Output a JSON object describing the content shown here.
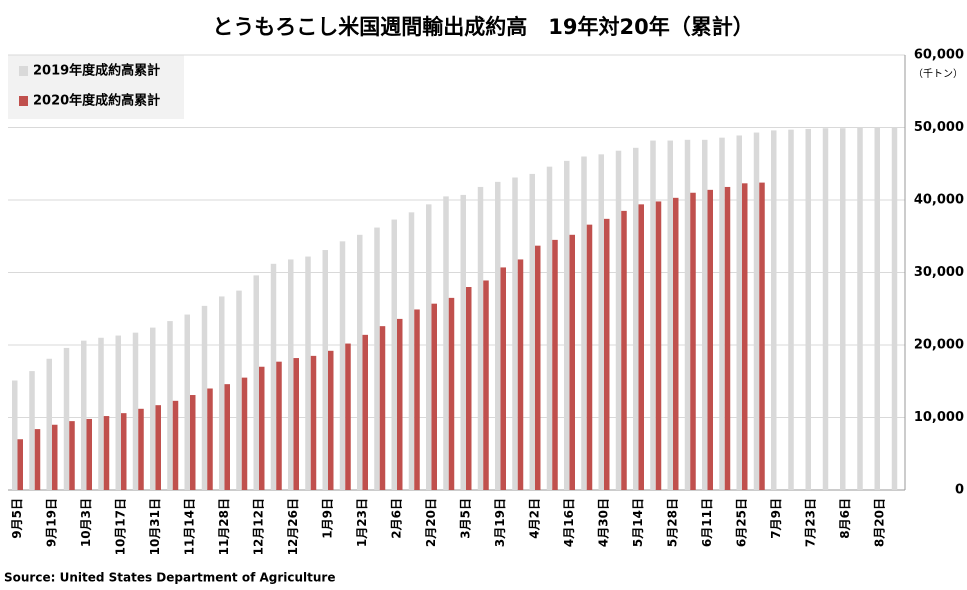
{
  "chart_data": {
    "type": "bar",
    "title": "とうもろこし米国週間輸出成約高　19年対20年（累計）",
    "unit_label": "（千トン）",
    "source": "Source: United States Department of Agriculture",
    "categories": [
      "9月5日",
      null,
      "9月19日",
      null,
      "10月3日",
      null,
      "10月17日",
      null,
      "10月31日",
      null,
      "11月14日",
      null,
      "11月28日",
      null,
      "12月12日",
      null,
      "12月26日",
      null,
      "1月9日",
      null,
      "1月23日",
      null,
      "2月6日",
      null,
      "2月20日",
      null,
      "3月5日",
      null,
      "3月19日",
      null,
      "4月2日",
      null,
      "4月16日",
      null,
      "4月30日",
      null,
      "5月14日",
      null,
      "5月28日",
      null,
      "6月11日",
      null,
      "6月25日",
      null,
      "7月9日",
      null,
      "7月23日",
      null,
      "8月6日",
      null,
      "8月20日",
      null
    ],
    "series": [
      {
        "name": "2019年度成約高累計",
        "color": "#d9d9d9",
        "values": [
          15100,
          16400,
          18100,
          19600,
          20600,
          21000,
          21300,
          21700,
          22400,
          23300,
          24200,
          25400,
          26700,
          27500,
          29600,
          31200,
          31800,
          32200,
          33100,
          34300,
          35200,
          36200,
          37300,
          38300,
          39400,
          40500,
          40700,
          41800,
          42500,
          43100,
          43600,
          44600,
          45400,
          46000,
          46300,
          46800,
          47200,
          48200,
          48200,
          48300,
          48300,
          48600,
          48900,
          49300,
          49600,
          49700,
          49800,
          49900,
          49900,
          50000,
          50000,
          50000
        ]
      },
      {
        "name": "2020年度成約高累計",
        "color": "#c0504d",
        "values": [
          7000,
          8400,
          9000,
          9500,
          9800,
          10200,
          10600,
          11200,
          11700,
          12300,
          13100,
          14000,
          14600,
          15500,
          17000,
          17700,
          18200,
          18500,
          19200,
          20200,
          21400,
          22600,
          23600,
          24900,
          25700,
          26500,
          28000,
          28900,
          30700,
          31800,
          33700,
          34500,
          35200,
          36600,
          37400,
          38500,
          39400,
          39800,
          40300,
          41000,
          41400,
          41800,
          42300,
          42400,
          null,
          null,
          null,
          null,
          null,
          null,
          null,
          null
        ]
      }
    ],
    "ylim": [
      0,
      60000
    ],
    "yticks": [
      0,
      {
        "value": 10000,
        "label": "10,000"
      },
      {
        "value": 20000,
        "label": "20,000"
      },
      {
        "value": 30000,
        "label": "30,000"
      },
      {
        "value": 40000,
        "label": "40,000"
      },
      {
        "value": 50000,
        "label": "50,000"
      },
      {
        "value": 60000,
        "label": "60,000"
      }
    ],
    "grid": true,
    "legend": "upper left"
  }
}
